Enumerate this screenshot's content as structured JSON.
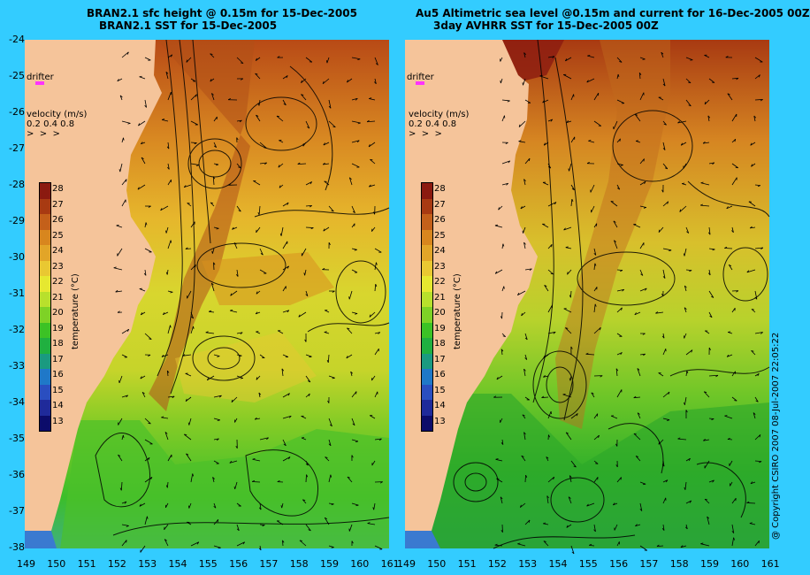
{
  "left_panel": {
    "title_line1": "BRAN2.1 sfc height @ 0.15m for 15-Dec-2005",
    "title_line2": "BRAN2.1 SST for 15-Dec-2005"
  },
  "right_panel": {
    "title_line1": "Au5 Altimetric sea level  @0.15m and current for 16-Dec-2005 00Z",
    "title_line2": "3day AVHRR SST for 15-Dec-2005 00Z"
  },
  "y_ticks": [
    "-24",
    "-25",
    "-26",
    "-27",
    "-28",
    "-29",
    "-30",
    "-31",
    "-32",
    "-33",
    "-34",
    "-35",
    "-36",
    "-37",
    "-38"
  ],
  "x_ticks_left": [
    "149",
    "150",
    "151",
    "152",
    "153",
    "154",
    "155",
    "156",
    "157",
    "158",
    "159",
    "160",
    "161"
  ],
  "x_ticks_right": [
    "149",
    "150",
    "151",
    "152",
    "153",
    "154",
    "155",
    "156",
    "157",
    "158",
    "159",
    "160",
    "161"
  ],
  "drifter_label": "drifter",
  "velocity": {
    "title": "velocity (m/s)",
    "scale": "0.2 0.4 0.8"
  },
  "colorbar": {
    "title": "temperature (°C)",
    "labels": [
      "28",
      "27",
      "26",
      "25",
      "24",
      "23",
      "22",
      "21",
      "20",
      "19",
      "18",
      "17",
      "16",
      "15",
      "14",
      "13"
    ],
    "colors": [
      "#8b1a10",
      "#a83a12",
      "#c4601a",
      "#d8861e",
      "#e2a528",
      "#e9c832",
      "#e6e830",
      "#b8e02c",
      "#7ed226",
      "#3cc225",
      "#20b040",
      "#1a9a80",
      "#1f78c8",
      "#2a4ec0",
      "#1f2a9a",
      "#0c0c6a"
    ]
  },
  "copyright": "@ Copyright CSIRO 2007  08-Jul-2007 22:05:22",
  "colors": {
    "background": "#33ccff",
    "land": "#f5c49a",
    "drifter_marker": "#ff33ff"
  }
}
